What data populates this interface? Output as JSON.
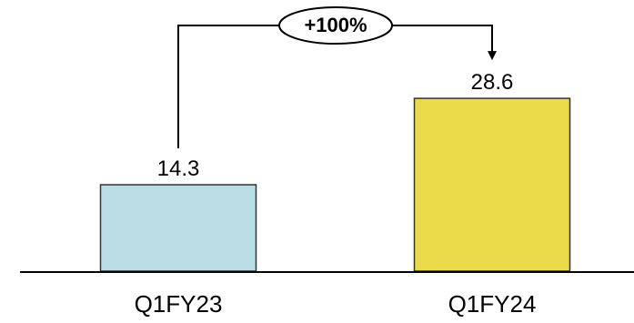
{
  "chart_data": {
    "type": "bar",
    "categories": [
      "Q1FY23",
      "Q1FY24"
    ],
    "values": [
      14.3,
      28.6
    ],
    "value_labels": [
      "14.3",
      "28.6"
    ],
    "bar_colors": [
      "#BBDDE6",
      "#EBDA4A"
    ],
    "bar_outline": "#333333",
    "title": "",
    "xlabel": "",
    "ylabel": "",
    "ylim": [
      0,
      30
    ],
    "grid": false,
    "legend": "none",
    "annotation": {
      "text": "+100%",
      "from_category": "Q1FY23",
      "to_category": "Q1FY24"
    }
  }
}
